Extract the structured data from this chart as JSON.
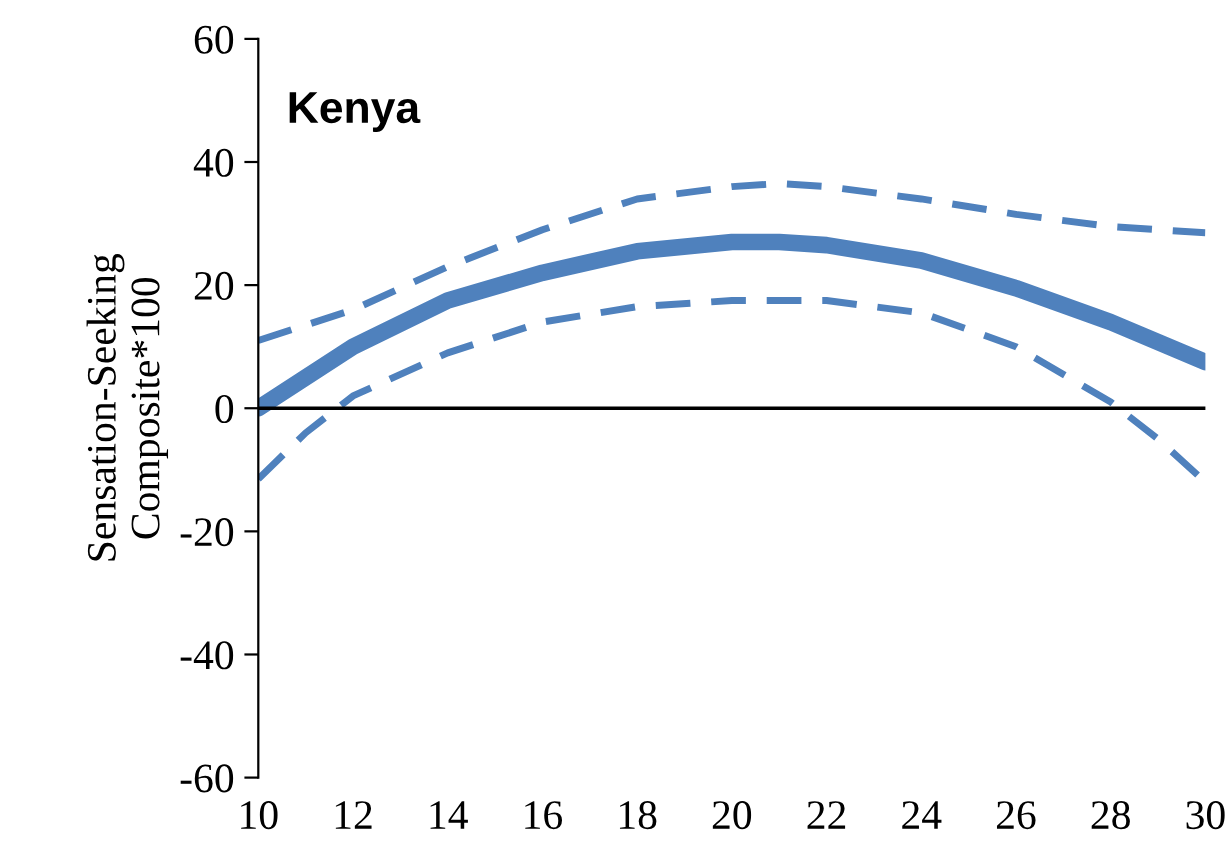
{
  "chart_data": {
    "type": "line",
    "title": "Kenya",
    "ylabel": "Sensation-Seeking\nComposite*100",
    "xlim": [
      10,
      30
    ],
    "xticks": [
      10,
      12,
      14,
      16,
      18,
      20,
      22,
      24,
      26,
      28,
      30
    ],
    "ylim": [
      -60,
      60
    ],
    "yticks": [
      -60,
      -40,
      -20,
      0,
      20,
      40,
      60
    ],
    "grid": false,
    "legend": false,
    "ref_lines": [
      {
        "axis": "y",
        "value": 0,
        "color": "#000000"
      }
    ],
    "series": [
      {
        "color": "#4f81bd",
        "line_style": "solid",
        "x": [
          10,
          12,
          14,
          16,
          18,
          20,
          21,
          22,
          24,
          26,
          28,
          30
        ],
        "values": [
          0,
          10,
          17.5,
          22,
          25.5,
          27,
          27,
          26.5,
          24,
          19.5,
          14,
          7.5
        ]
      },
      {
        "color": "#4f81bd",
        "line_style": "dashed",
        "x": [
          10,
          12,
          14,
          16,
          18,
          20,
          21,
          22,
          24,
          26,
          28,
          30
        ],
        "values": [
          11,
          16,
          23,
          29,
          34,
          36,
          36.5,
          36,
          34,
          31.5,
          29.5,
          28.5
        ]
      },
      {
        "color": "#4f81bd",
        "line_style": "dashed",
        "x": [
          10,
          11,
          12,
          14,
          16,
          18,
          20,
          22,
          24,
          26,
          28,
          29,
          30
        ],
        "values": [
          -11.5,
          -4,
          2,
          9,
          14,
          16.5,
          17.5,
          17.5,
          15.5,
          10,
          1,
          -5,
          -12
        ]
      }
    ]
  }
}
